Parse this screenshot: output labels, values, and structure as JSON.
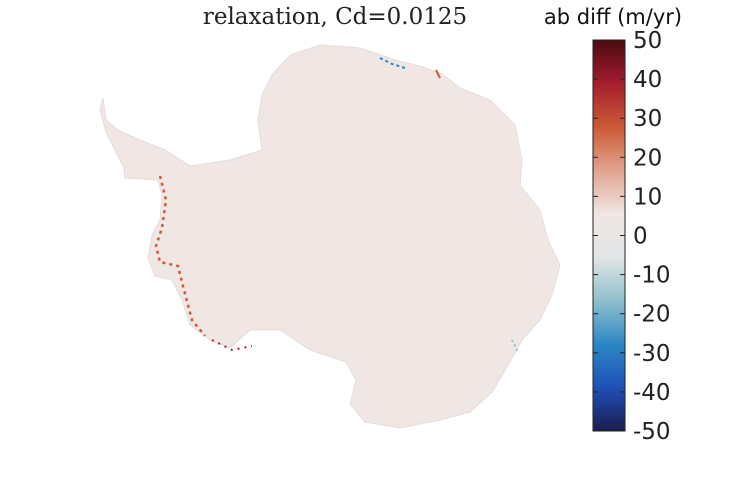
{
  "chart_data": {
    "type": "heatmap",
    "title": "relaxation, Cd=0.0125",
    "colorbar": {
      "label": "ab diff (m/yr)",
      "range": [
        -50,
        50
      ],
      "ticks": [
        50,
        40,
        30,
        20,
        10,
        0,
        -10,
        -20,
        -30,
        -40,
        -50
      ],
      "tick_labels": [
        "50",
        "40",
        "30",
        "20",
        "10",
        "0",
        "-10",
        "-20",
        "-30",
        "-40",
        "-50"
      ],
      "colormap": [
        "#1a1d4d",
        "#1f4fb8",
        "#2c88c4",
        "#8fbfcc",
        "#e2e5e7",
        "#f0e6e2",
        "#e0a38f",
        "#cc5a36",
        "#a51e2e",
        "#4a0b12"
      ]
    },
    "map": {
      "region": "Antarctica",
      "dominant_value": 2,
      "land_color": "#f0e6e4"
    }
  }
}
